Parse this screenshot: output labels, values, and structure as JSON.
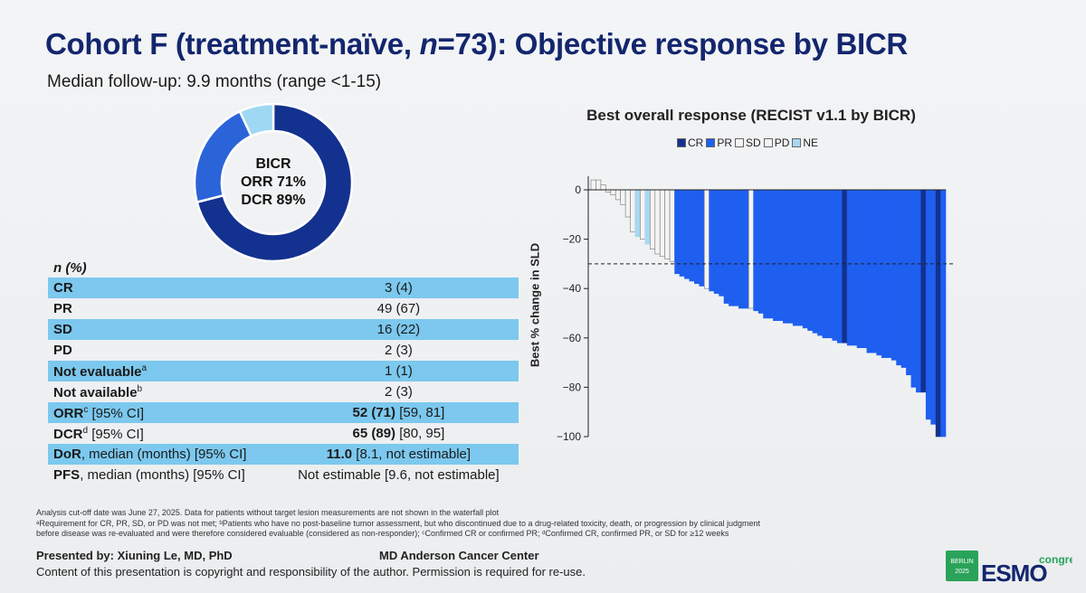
{
  "slide": {
    "title": "Cohort F (treatment-naïve, n=73): Objective response by BICR",
    "title_pre": "Cohort F (treatment-naïve, ",
    "title_n": "n",
    "title_post": "=73): Objective response by BICR",
    "subtitle": "Median follow-up: 9.9 months (range <1-15)"
  },
  "donut": {
    "line1": "BICR",
    "line2": "ORR 71%",
    "line3": "DCR 89%",
    "segments": [
      {
        "label": "CR+PR",
        "percent": 71,
        "color": "#13318f"
      },
      {
        "label": "SD",
        "percent": 22,
        "color": "#2b64d8"
      },
      {
        "label": "PD/NE",
        "percent": 7,
        "color": "#9fd8f2"
      }
    ]
  },
  "table": {
    "header": "n (%)",
    "rows": [
      {
        "label": "CR",
        "sup": "",
        "value_bold": "",
        "value": "3 (4)"
      },
      {
        "label": "PR",
        "sup": "",
        "value_bold": "",
        "value": "49 (67)"
      },
      {
        "label": "SD",
        "sup": "",
        "value_bold": "",
        "value": "16 (22)"
      },
      {
        "label": "PD",
        "sup": "",
        "value_bold": "",
        "value": "2 (3)"
      },
      {
        "label": "Not evaluable",
        "sup": "a",
        "value_bold": "",
        "value": "1 (1)"
      },
      {
        "label": "Not available",
        "sup": "b",
        "value_bold": "",
        "value": "2 (3)"
      },
      {
        "label": "ORR",
        "sup": "c",
        "label_suffix": " [95% CI]",
        "value_bold": "52 (71)",
        "value": " [59, 81]"
      },
      {
        "label": "DCR",
        "sup": "d",
        "label_suffix": " [95% CI]",
        "value_bold": "65 (89)",
        "value": " [80, 95]"
      },
      {
        "label": "DoR",
        "sup": "",
        "label_suffix": ", median (months) [95% CI]",
        "value_bold": "11.0",
        "value": " [8.1, not estimable]"
      },
      {
        "label": "PFS",
        "sup": "",
        "label_suffix": ", median (months) [95% CI]",
        "value_bold": "",
        "value": "Not estimable [9.6, not estimable]"
      }
    ]
  },
  "footnotes": {
    "line1": "Analysis cut-off date was June 27, 2025. Data for patients without target lesion measurements are not shown in the waterfall plot",
    "line2": "ᵃRequirement for CR, PR, SD, or PD was not met; ᵇPatients who have no post-baseline tumor assessment, but who discontinued due to a drug-related toxicity, death, or progression by clinical judgment",
    "line3": "before disease was re-evaluated and were therefore considered evaluable (considered as non-responder); ᶜConfirmed CR or confirmed PR; ᵈConfirmed CR, confirmed PR, or SD for ≥12 weeks"
  },
  "footer": {
    "presented": "Presented by: Xiuning Le, MD, PhD",
    "institution": "MD Anderson Cancer Center",
    "copyright": "Content of this presentation is copyright and responsibility of the author. Permission is required for re-use.",
    "logo_city": "BERLIN",
    "logo_year": "2025",
    "logo_text": "ESMO",
    "logo_suffix": "congress"
  },
  "chart_data": {
    "type": "bar",
    "title": "Best overall response (RECIST v1.1 by BICR)",
    "ylabel": "Best % change in SLD",
    "ylim": [
      -100,
      10
    ],
    "yticks": [
      0,
      -20,
      -40,
      -60,
      -80,
      -100
    ],
    "reference_line": -30,
    "legend": [
      "CR",
      "PR",
      "SD",
      "PD",
      "NE"
    ],
    "colors": {
      "CR": "#13318f",
      "PR": "#1e5ff0",
      "SD": "#f4f4f4",
      "PD": "#f4f4f4",
      "NE": "#a8d8f0"
    },
    "values": [
      4,
      4,
      2,
      -1,
      -2,
      -4,
      -6,
      -11,
      -17,
      -19,
      -20,
      -22,
      -24,
      -26,
      -27,
      -28,
      -29,
      -34,
      -35,
      -36,
      -37,
      -38,
      -39,
      -40,
      -41,
      -42,
      -43,
      -46,
      -47,
      -47,
      -48,
      -48,
      -48,
      -49,
      -50,
      -52,
      -52,
      -53,
      -53,
      -54,
      -54,
      -55,
      -55,
      -56,
      -57,
      -58,
      -59,
      -60,
      -60,
      -61,
      -62,
      -62,
      -63,
      -63,
      -64,
      -64,
      -66,
      -66,
      -67,
      -68,
      -68,
      -69,
      -71,
      -72,
      -75,
      -80,
      -82,
      -82,
      -93,
      -95,
      -100,
      -100
    ],
    "statuses": [
      "SD",
      "SD",
      "SD",
      "SD",
      "SD",
      "SD",
      "SD",
      "SD",
      "SD",
      "NE",
      "SD",
      "NE",
      "SD",
      "SD",
      "SD",
      "SD",
      "SD",
      "PR",
      "PR",
      "PR",
      "PR",
      "PR",
      "PR",
      "SD",
      "PR",
      "PR",
      "PR",
      "PR",
      "PR",
      "PR",
      "PR",
      "PR",
      "SD",
      "PR",
      "PR",
      "PR",
      "PR",
      "PR",
      "PR",
      "PR",
      "PR",
      "PR",
      "PR",
      "PR",
      "PR",
      "PR",
      "PR",
      "PR",
      "PR",
      "PR",
      "PR",
      "CR",
      "PR",
      "PR",
      "PR",
      "PR",
      "PR",
      "PR",
      "PR",
      "PR",
      "PR",
      "PR",
      "PR",
      "PR",
      "PR",
      "PR",
      "PR",
      "CR",
      "PR",
      "PR",
      "CR",
      "PR"
    ]
  }
}
